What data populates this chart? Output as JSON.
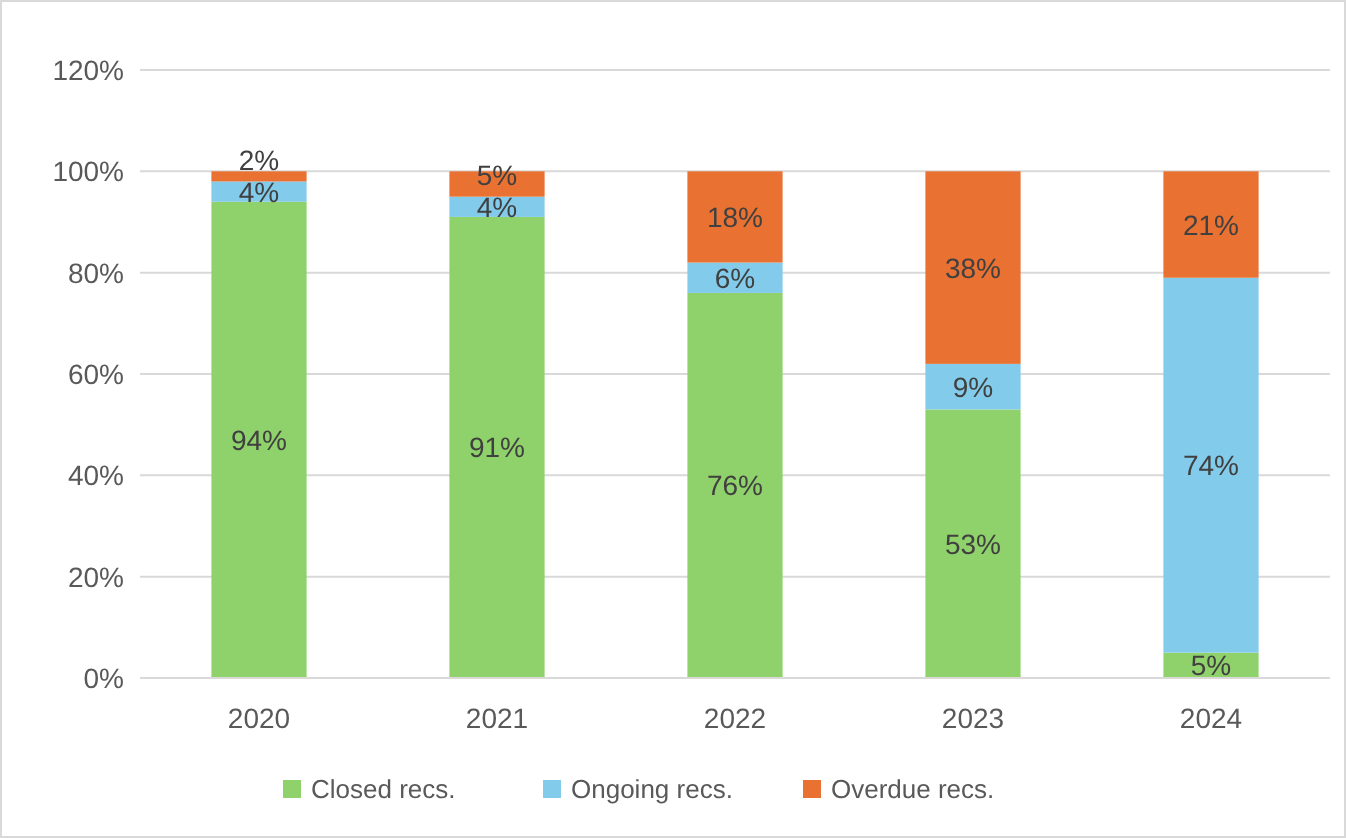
{
  "chart_data": {
    "type": "bar",
    "stacked": true,
    "categories": [
      "2020",
      "2021",
      "2022",
      "2023",
      "2024"
    ],
    "series": [
      {
        "name": "Closed recs.",
        "color": "#8fd16a",
        "values": [
          94,
          91,
          76,
          53,
          5
        ],
        "value_labels": [
          "94%",
          "91%",
          "76%",
          "53%",
          "5%"
        ]
      },
      {
        "name": "Ongoing recs.",
        "color": "#83cbeb",
        "values": [
          4,
          4,
          6,
          9,
          74
        ],
        "value_labels": [
          "4%",
          "4%",
          "6%",
          "9%",
          "74%"
        ]
      },
      {
        "name": "Overdue recs.",
        "color": "#e97132",
        "values": [
          2,
          5,
          18,
          38,
          21
        ],
        "value_labels": [
          "2%",
          "5%",
          "18%",
          "38%",
          "21%"
        ]
      }
    ],
    "ylim": [
      0,
      120
    ],
    "yticks": [
      {
        "value": 0,
        "label": "0%"
      },
      {
        "value": 20,
        "label": "20%"
      },
      {
        "value": 40,
        "label": "40%"
      },
      {
        "value": 60,
        "label": "60%"
      },
      {
        "value": 80,
        "label": "80%"
      },
      {
        "value": 100,
        "label": "100%"
      },
      {
        "value": 120,
        "label": "120%"
      }
    ],
    "grid": "y",
    "legend": "bottom"
  }
}
